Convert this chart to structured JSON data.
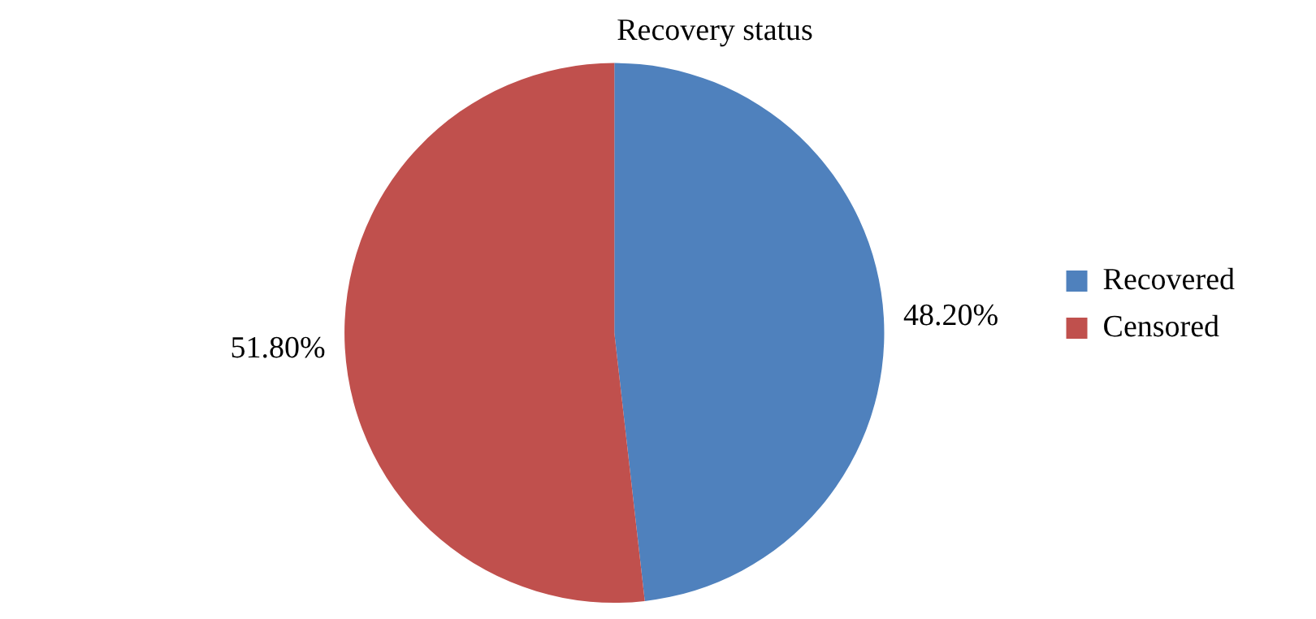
{
  "chart_data": {
    "type": "pie",
    "title": "Recovery status",
    "categories": [
      "Recovered",
      "Censored"
    ],
    "values": [
      48.2,
      51.8
    ],
    "colors": [
      "#4f81bd",
      "#c0504d"
    ],
    "value_labels": [
      "48.20%",
      "51.80%"
    ],
    "legend": "right"
  }
}
